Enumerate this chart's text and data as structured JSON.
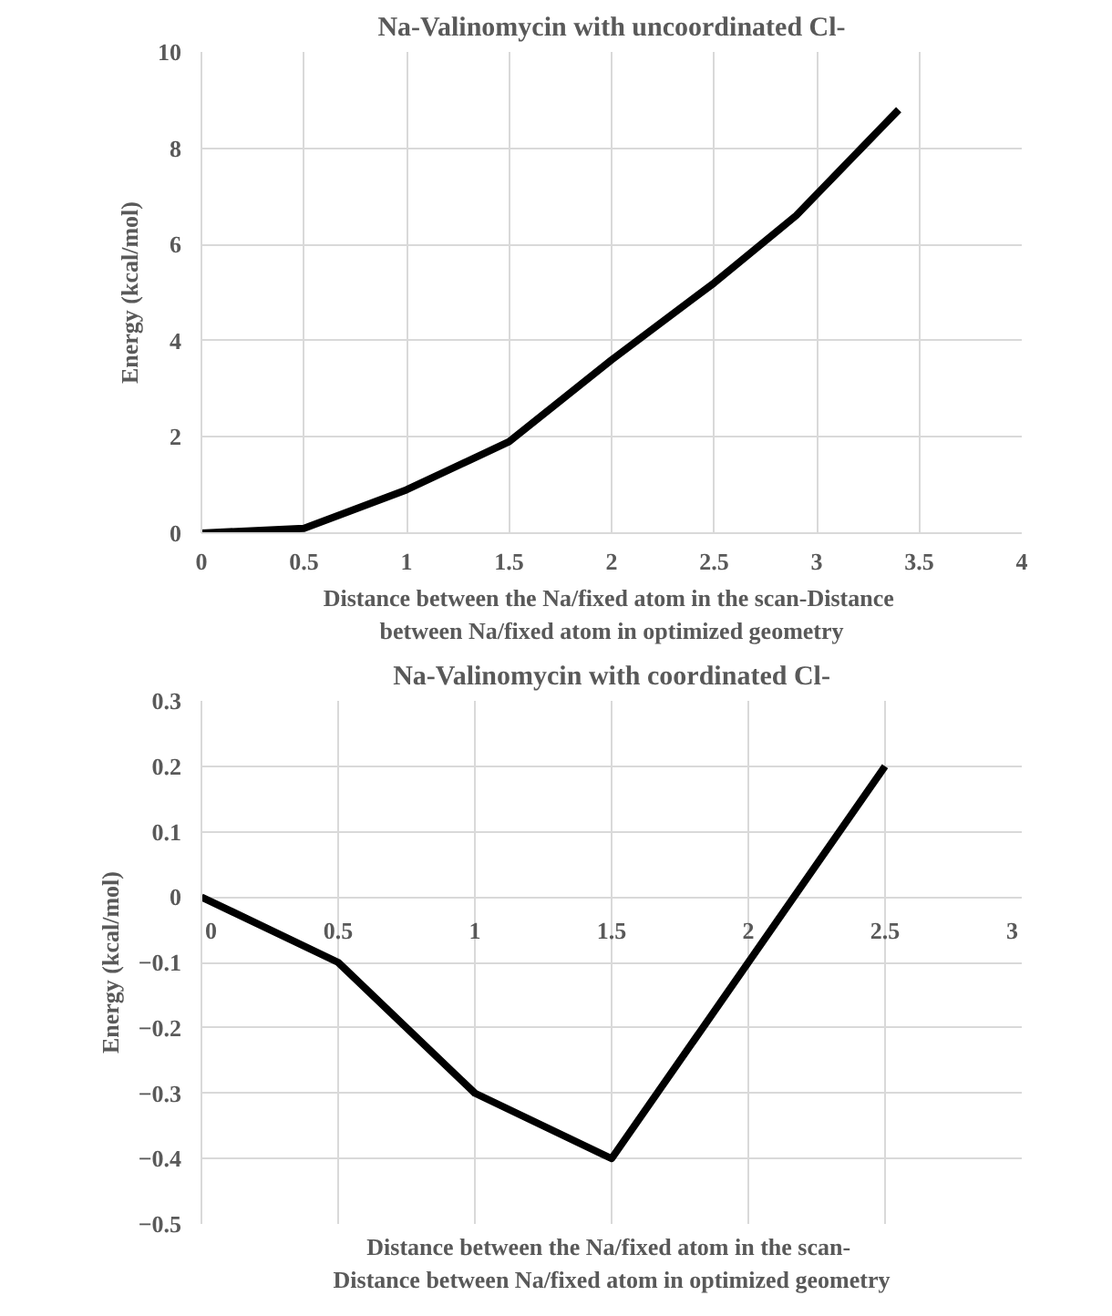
{
  "chart_data": [
    {
      "type": "line",
      "title": "Na-Valinomycin with uncoordinated Cl-",
      "xlabel": "Distance between the Na/fixed atom  in the scan-Distance\nbetween Na/fixed atom in optimized geometry",
      "ylabel": "Energy (kcal/mol)",
      "x": [
        0,
        0.5,
        1,
        1.5,
        2,
        2.5,
        2.9,
        3.4
      ],
      "series": [
        {
          "color": "#000000",
          "values": [
            0,
            0.1,
            0.9,
            1.9,
            3.6,
            5.2,
            6.6,
            8.8
          ]
        }
      ],
      "xlim": [
        0,
        4
      ],
      "xticks": [
        0,
        0.5,
        1,
        1.5,
        2,
        2.5,
        3,
        3.5,
        4
      ],
      "ylim": [
        0,
        10
      ],
      "yticks": [
        0,
        2,
        4,
        6,
        8,
        10
      ],
      "grid": true
    },
    {
      "type": "line",
      "title": "Na-Valinomycin with coordinated Cl-",
      "xlabel": "Distance between the Na/fixed atom  in the scan-\nDistance between Na/fixed atom in optimized geometry",
      "ylabel": "Energy (kcal/mol)",
      "x": [
        0,
        0.5,
        1,
        1.5,
        2.5
      ],
      "series": [
        {
          "color": "#000000",
          "values": [
            0,
            -0.1,
            -0.3,
            -0.4,
            0.2
          ]
        }
      ],
      "xlim": [
        0,
        3
      ],
      "xticks": [
        0,
        0.5,
        1,
        1.5,
        2,
        2.5,
        3
      ],
      "ylim": [
        -0.5,
        0.3
      ],
      "yticks": [
        -0.5,
        -0.4,
        -0.3,
        -0.2,
        -0.1,
        0,
        0.1,
        0.2,
        0.3
      ],
      "grid": true
    }
  ]
}
